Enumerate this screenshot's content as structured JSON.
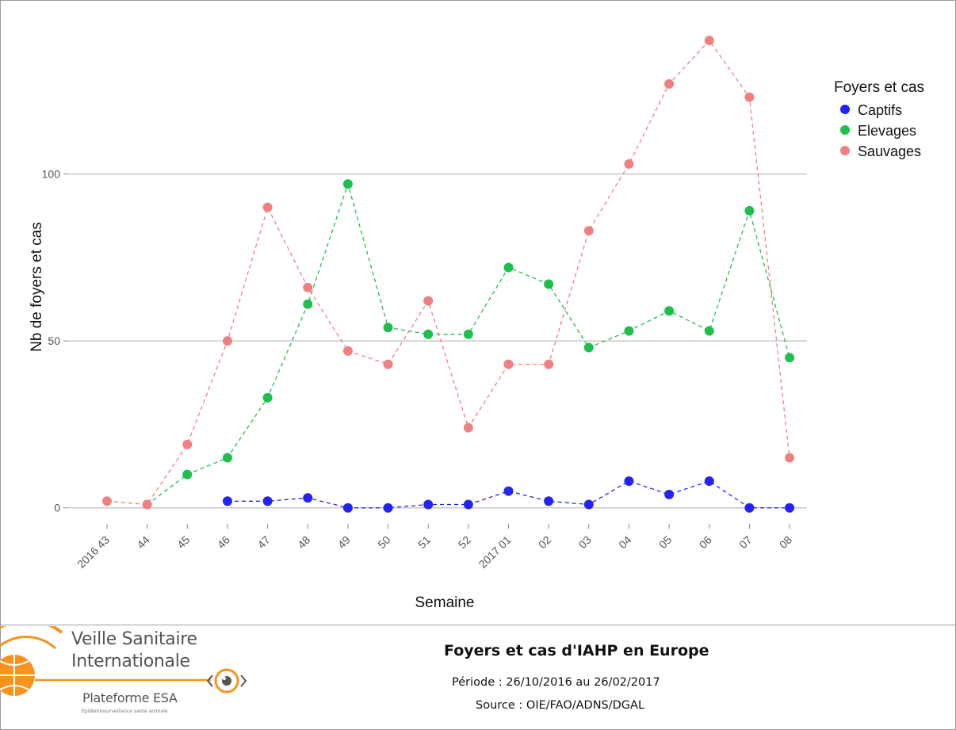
{
  "chart_data": {
    "type": "line",
    "xlabel": "Semaine",
    "ylabel": "Nb de foyers et cas",
    "categories": [
      "2016 43",
      "44",
      "45",
      "46",
      "47",
      "48",
      "49",
      "50",
      "51",
      "52",
      "2017 01",
      "02",
      "03",
      "04",
      "05",
      "06",
      "07",
      "08"
    ],
    "ylim": [
      -6,
      145
    ],
    "yticks": [
      0,
      50,
      100
    ],
    "grid": "horizontal",
    "legend": {
      "title": "Foyers et cas",
      "position": "right"
    },
    "series": [
      {
        "name": "Captifs",
        "color": "#2424f2",
        "values": [
          null,
          null,
          null,
          2,
          2,
          3,
          0,
          0,
          1,
          1,
          5,
          2,
          1,
          8,
          4,
          8,
          0,
          0
        ]
      },
      {
        "name": "Elevages",
        "color": "#1fbf4f",
        "values": [
          null,
          1,
          10,
          15,
          33,
          61,
          97,
          54,
          52,
          52,
          72,
          67,
          48,
          53,
          59,
          53,
          89,
          45
        ]
      },
      {
        "name": "Sauvages",
        "color": "#f08080",
        "values": [
          2,
          1,
          19,
          50,
          90,
          66,
          47,
          43,
          62,
          24,
          43,
          43,
          83,
          103,
          127,
          140,
          123,
          15
        ]
      }
    ]
  },
  "footer": {
    "title": "Foyers et cas d'IAHP en Europe",
    "period": "Période : 26/10/2016 au 26/02/2017",
    "source": "Source : OIE/FAO/ADNS/DGAL"
  },
  "logo": {
    "line1": "Veille Sanitaire",
    "line2": "Internationale",
    "line3": "Plateforme ESA",
    "line4": "Epidémiosurveillance santé animale",
    "accent_color": "#f7931e",
    "icon": "globe-eye-icon"
  }
}
